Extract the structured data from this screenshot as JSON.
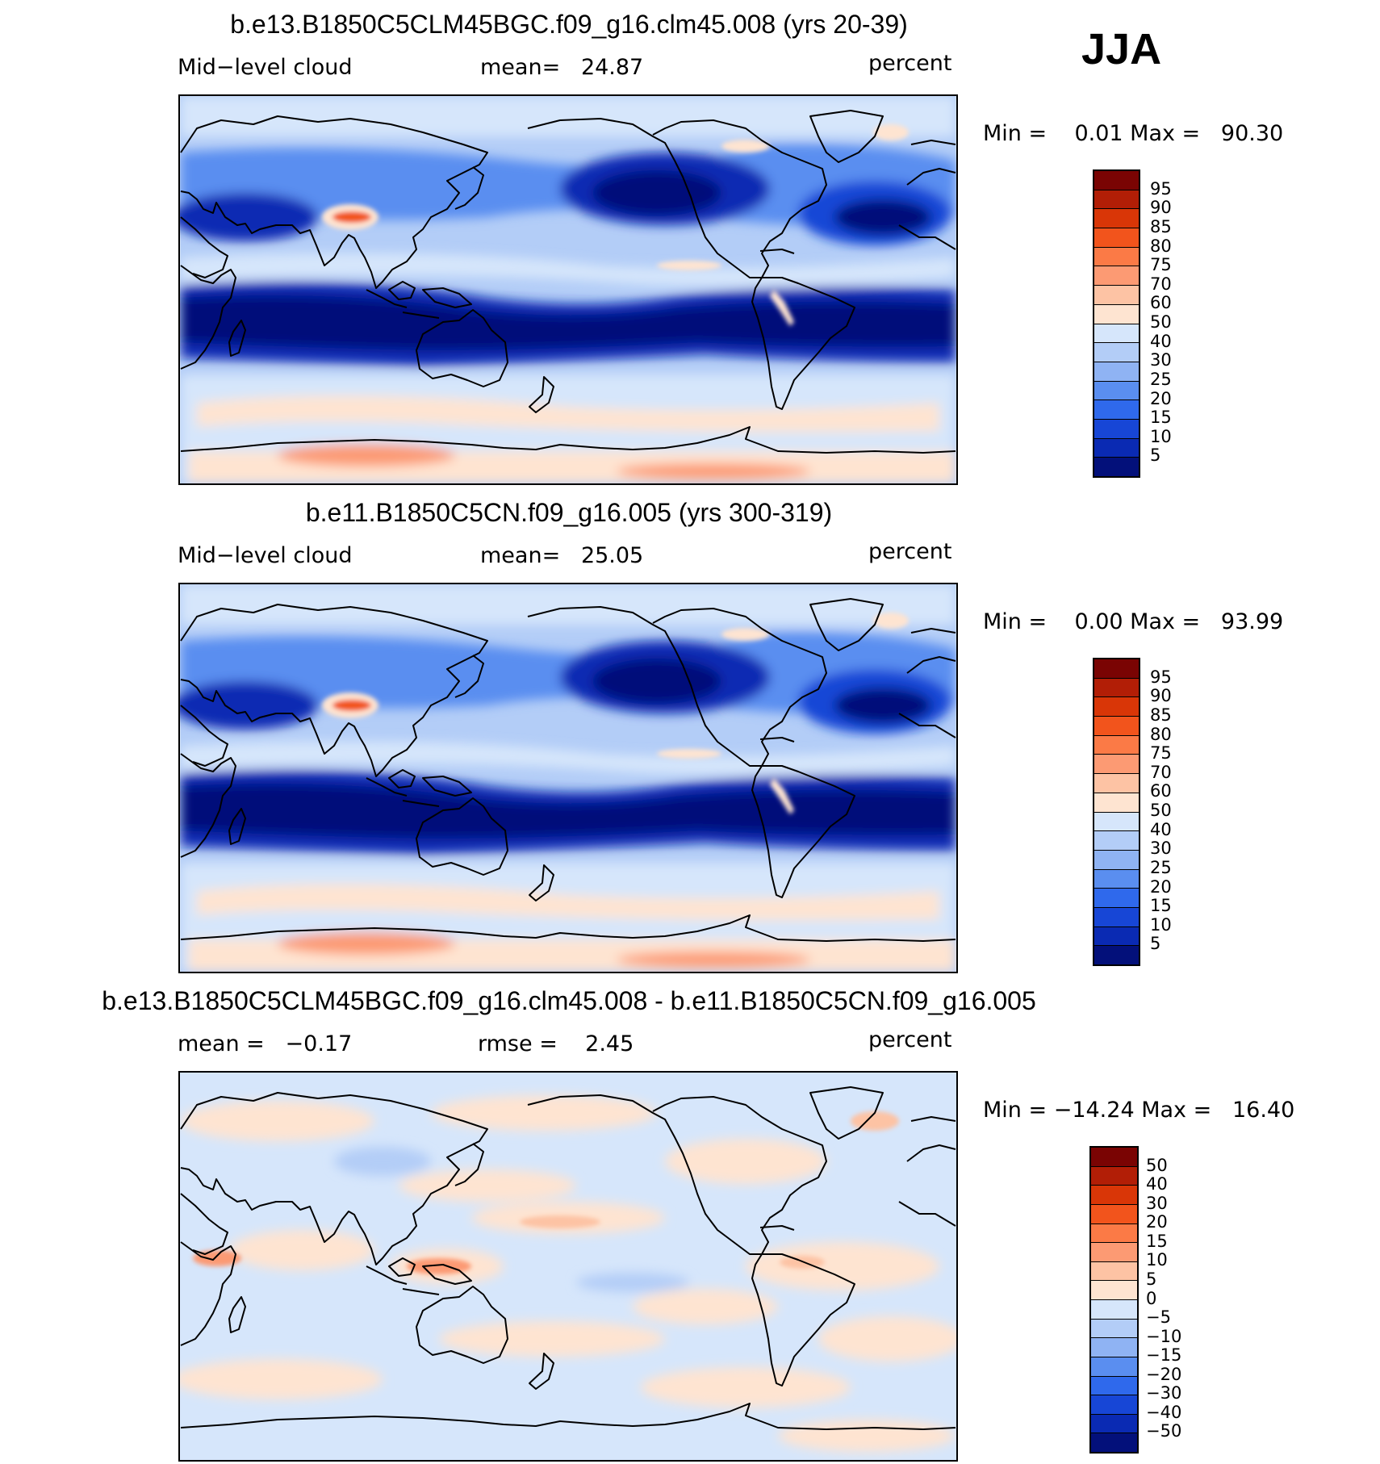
{
  "season": "JJA",
  "panels": [
    {
      "title": "b.e13.B1850C5CLM45BGC.f09_g16.clm45.008 (yrs 20-39)",
      "left_label": "Mid−level cloud",
      "mid_label": "mean=   24.87",
      "units": "percent",
      "minmax": "Min =    0.01 Max =   90.30",
      "kind": "abs"
    },
    {
      "title": "b.e11.B1850C5CN.f09_g16.005 (yrs 300-319)",
      "left_label": "Mid−level cloud",
      "mid_label": "mean=   25.05",
      "units": "percent",
      "minmax": "Min =    0.00 Max =   93.99",
      "kind": "abs"
    },
    {
      "title": "b.e13.B1850C5CLM45BGC.f09_g16.clm45.008 - b.e11.B1850C5CN.f09_g16.005",
      "left_label": "mean =   −0.17",
      "mid_label": "rmse =    2.45",
      "units": "percent",
      "minmax": "Min = −14.24 Max =   16.40",
      "kind": "diff"
    }
  ],
  "colorbars": {
    "abs": {
      "labels": [
        "95",
        "90",
        "85",
        "80",
        "75",
        "70",
        "60",
        "50",
        "40",
        "30",
        "25",
        "20",
        "15",
        "10",
        "5"
      ],
      "colors": [
        "#7a0403",
        "#b21e06",
        "#d93607",
        "#f2541c",
        "#fb7a46",
        "#fc9a73",
        "#fdc3a4",
        "#fee4d1",
        "#d6e6fb",
        "#b3cdf7",
        "#8fb3f3",
        "#5a8ef0",
        "#2f69ec",
        "#1746d6",
        "#0a2ab3",
        "#03107a"
      ]
    },
    "diff": {
      "labels": [
        "50",
        "40",
        "30",
        "20",
        "15",
        "10",
        "5",
        "0",
        "−5",
        "−10",
        "−15",
        "−20",
        "−30",
        "−40",
        "−50"
      ],
      "colors": [
        "#7a0403",
        "#b21e06",
        "#d93607",
        "#f2541c",
        "#fb7a46",
        "#fc9a73",
        "#fdc3a4",
        "#fee4d1",
        "#d6e6fb",
        "#b3cdf7",
        "#8fb3f3",
        "#5a8ef0",
        "#2f69ec",
        "#1746d6",
        "#0a2ab3",
        "#03107a"
      ]
    }
  }
}
